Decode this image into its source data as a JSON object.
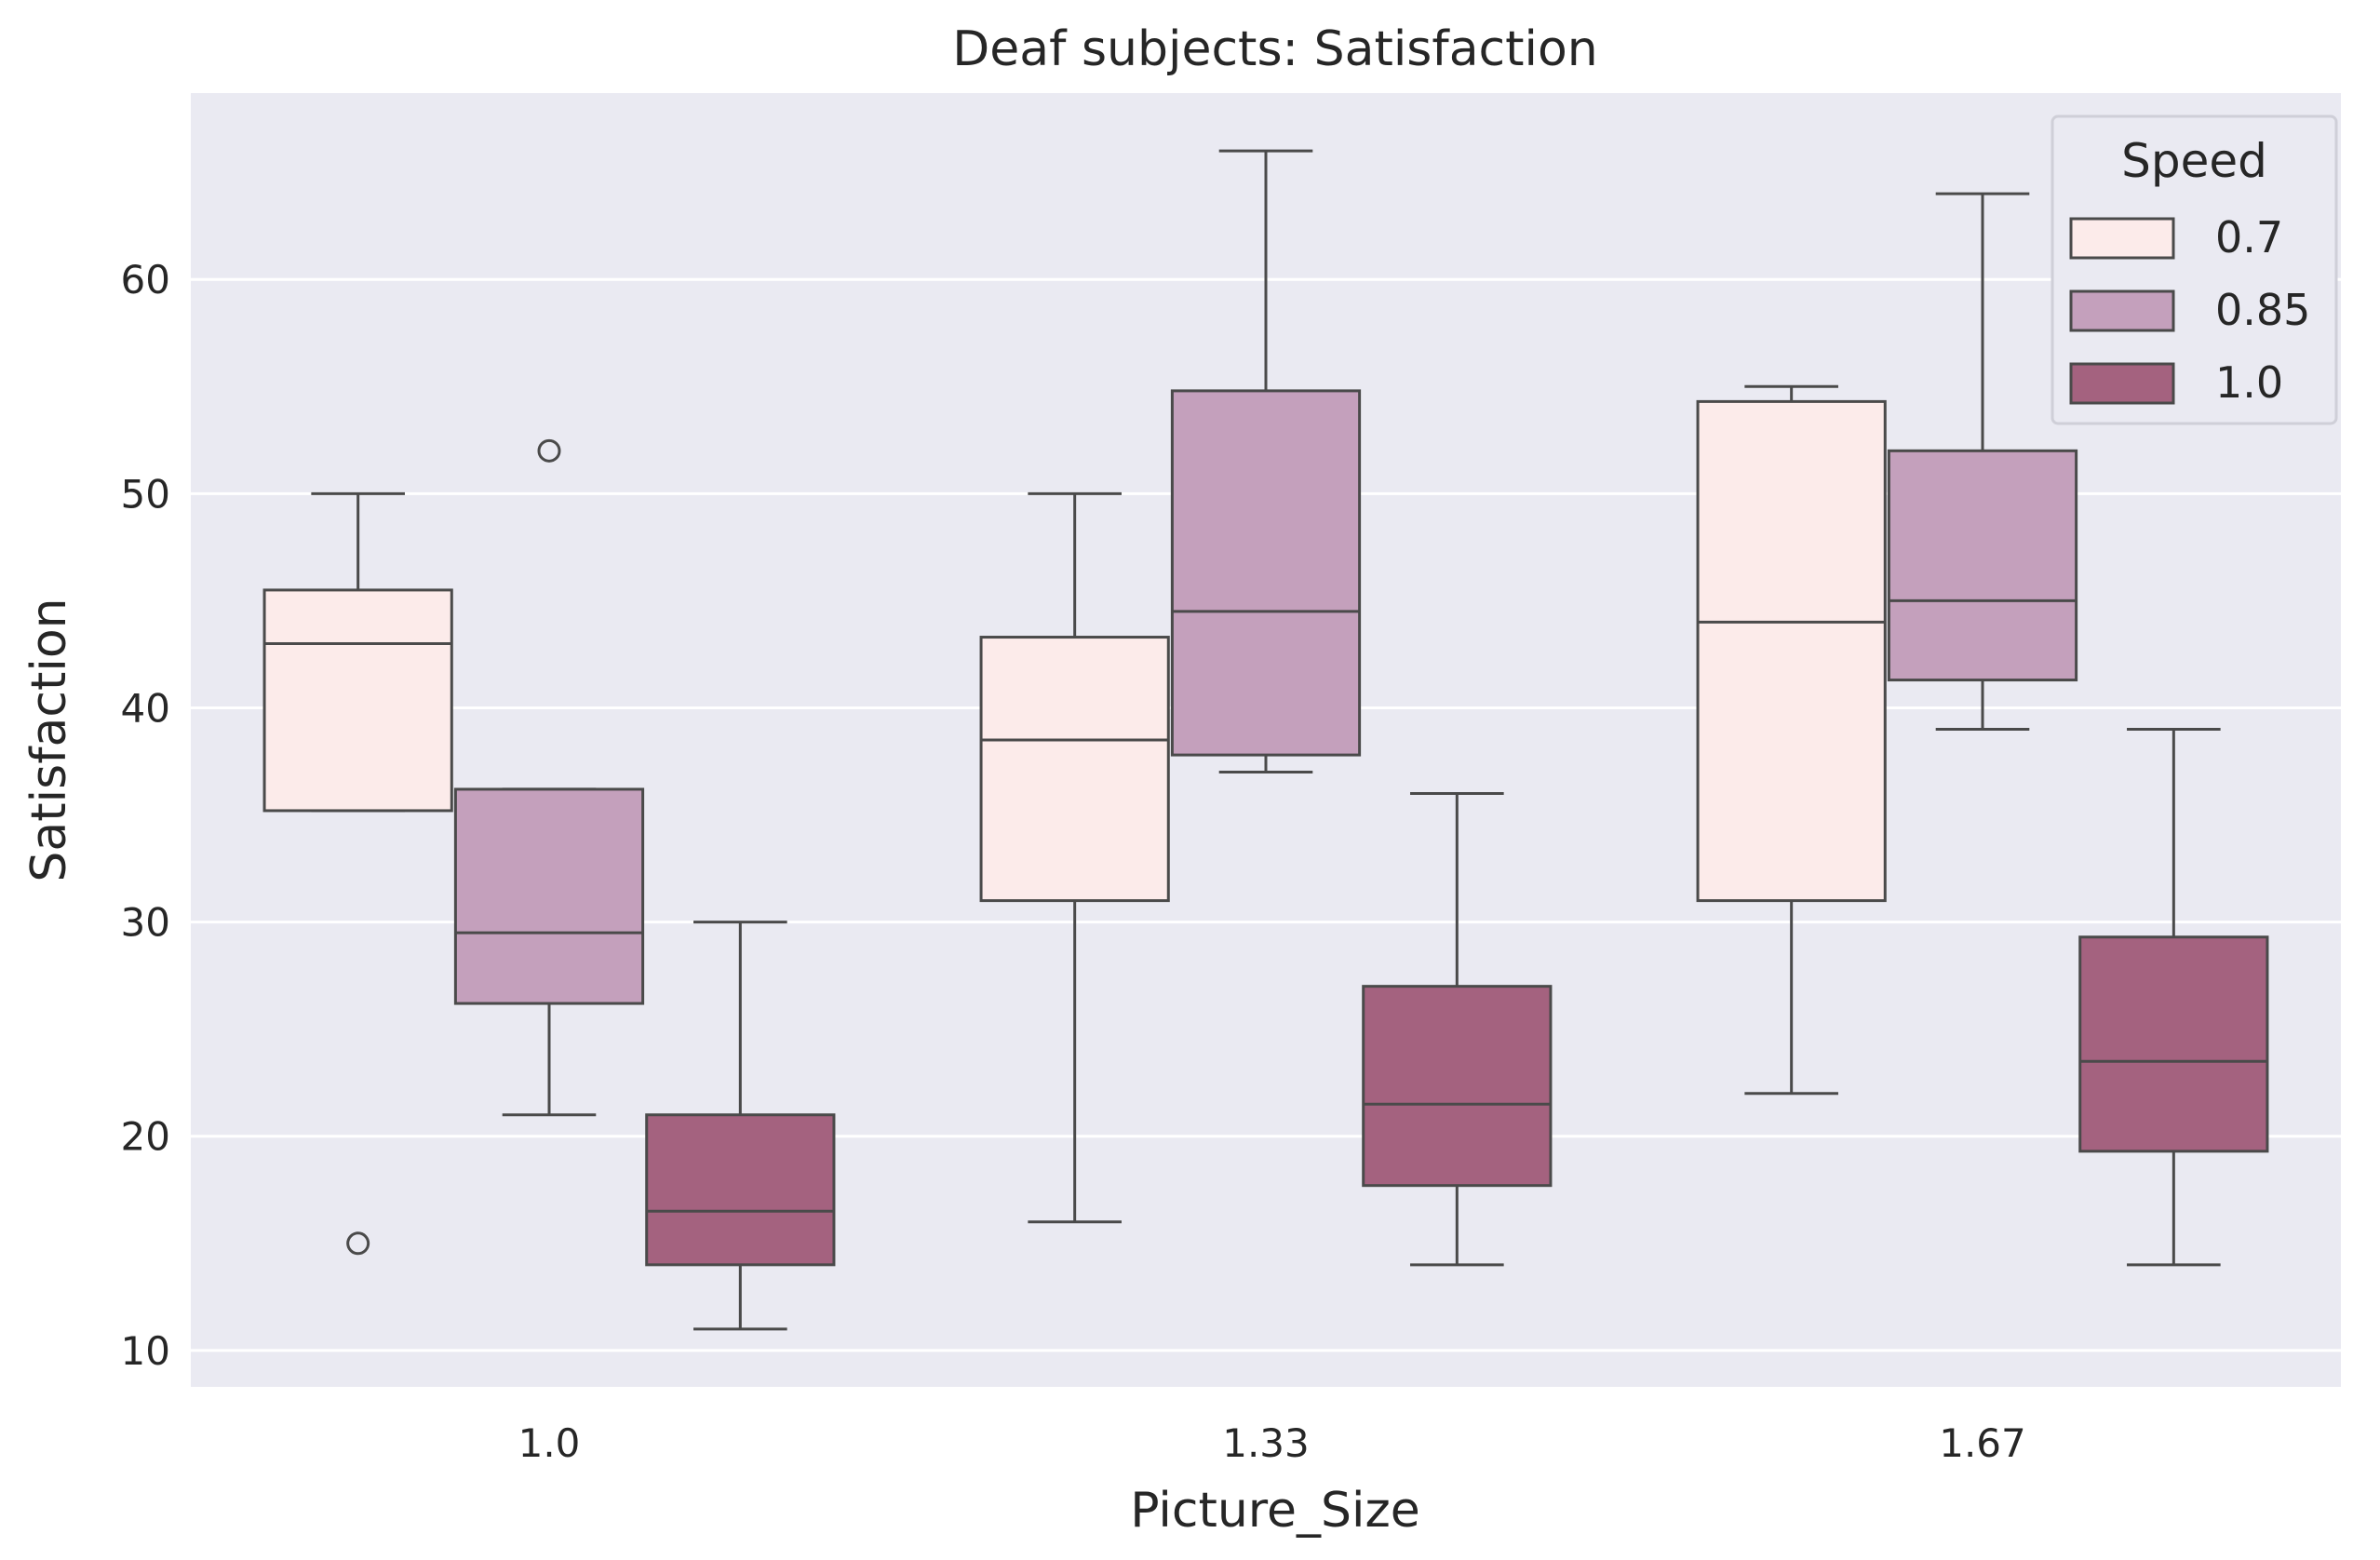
{
  "chart_data": {
    "type": "box",
    "title": "Deaf subjects: Satisfaction",
    "xlabel": "Picture_Size",
    "ylabel": "Satisfaction",
    "categories": [
      "1.0",
      "1.33",
      "1.67"
    ],
    "yticks": [
      "10",
      "20",
      "30",
      "40",
      "50",
      "60"
    ],
    "ylim": [
      8.3,
      68.7
    ],
    "grid": true,
    "legend": {
      "title": "Speed",
      "placement": "top-right"
    },
    "colors": {
      "background": "#eaeaf2",
      "grid": "#ffffff",
      "edge": "#4a4a4a"
    },
    "series": [
      {
        "name": "0.7",
        "color": "#fcebea",
        "boxes": [
          {
            "whislo": 35.2,
            "q1": 35.2,
            "med": 43,
            "q3": 45.5,
            "whishi": 50,
            "fliers": [
              15
            ]
          },
          {
            "whislo": 16,
            "q1": 31,
            "med": 38.5,
            "q3": 43.3,
            "whishi": 50,
            "fliers": []
          },
          {
            "whislo": 22,
            "q1": 31,
            "med": 44,
            "q3": 54.3,
            "whishi": 55,
            "fliers": []
          }
        ]
      },
      {
        "name": "0.85",
        "color": "#c4a0bc",
        "boxes": [
          {
            "whislo": 21,
            "q1": 26.2,
            "med": 29.5,
            "q3": 36.2,
            "whishi": 36.2,
            "fliers": [
              52
            ]
          },
          {
            "whislo": 37,
            "q1": 37.8,
            "med": 44.5,
            "q3": 54.8,
            "whishi": 66,
            "fliers": []
          },
          {
            "whislo": 39,
            "q1": 41.3,
            "med": 45,
            "q3": 52,
            "whishi": 64,
            "fliers": []
          }
        ]
      },
      {
        "name": "1.0",
        "color": "#a4627f",
        "boxes": [
          {
            "whislo": 11,
            "q1": 14,
            "med": 16.5,
            "q3": 21,
            "whishi": 30,
            "fliers": []
          },
          {
            "whislo": 14,
            "q1": 17.7,
            "med": 21.5,
            "q3": 27,
            "whishi": 36,
            "fliers": []
          },
          {
            "whislo": 14,
            "q1": 19.3,
            "med": 23.5,
            "q3": 29.3,
            "whishi": 39,
            "fliers": []
          }
        ]
      }
    ]
  }
}
